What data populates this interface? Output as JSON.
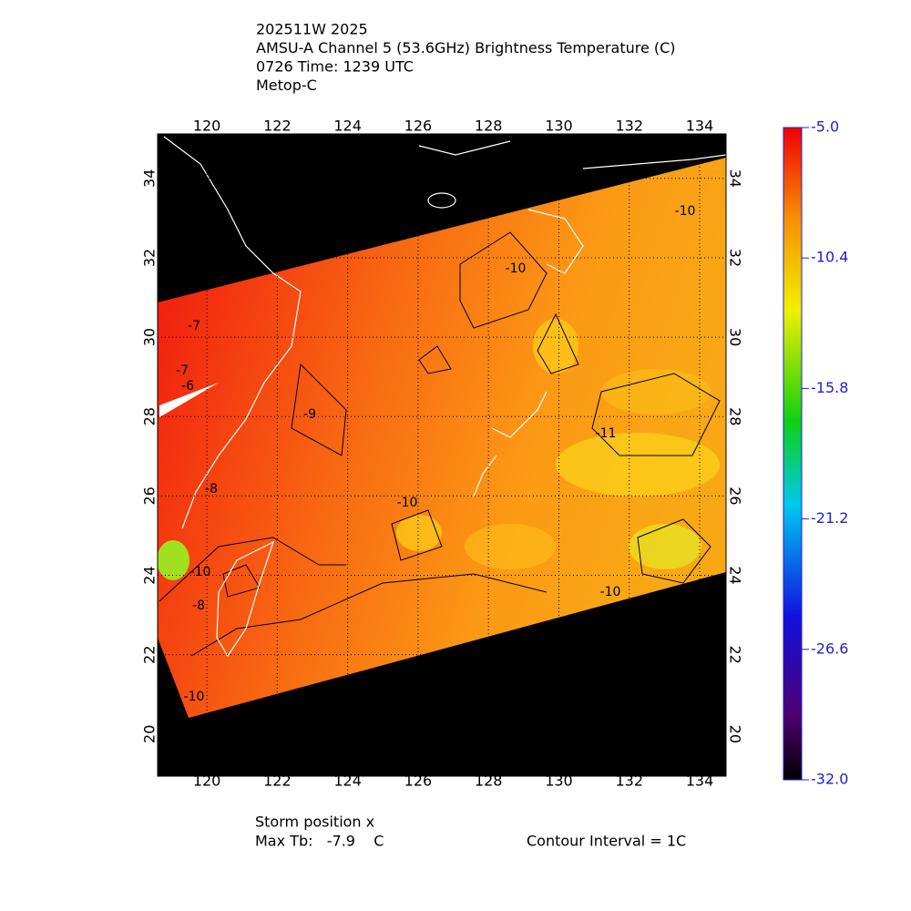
{
  "header": {
    "lines": [
      "202511W 2025",
      "AMSU-A Channel 5 (53.6GHz) Brightness Temperature (C)",
      "0726 Time: 1239 UTC",
      "Metop-C"
    ]
  },
  "map": {
    "lon_range": [
      118.6,
      134.75
    ],
    "lat_range": [
      18.94,
      35.12
    ],
    "lon_ticks": [
      120,
      122,
      124,
      126,
      128,
      130,
      132,
      134
    ],
    "lat_ticks": [
      20,
      22,
      24,
      26,
      28,
      30,
      32,
      34
    ],
    "contour_labels": [
      "-10",
      "-10",
      "-9",
      "-10",
      "-11",
      "-7",
      "-7",
      "-6",
      "-8",
      "-10",
      "-8",
      "-10",
      "-10"
    ]
  },
  "colorbar": {
    "range": [
      -32,
      -5
    ],
    "ticks": [
      {
        "value": -5,
        "label": "-5.0"
      },
      {
        "value": -10.4,
        "label": "-10.4"
      },
      {
        "value": -15.8,
        "label": "-15.8"
      },
      {
        "value": -21.2,
        "label": "-21.2"
      },
      {
        "value": -26.6,
        "label": "-26.6"
      },
      {
        "value": -32,
        "label": "-32.0"
      }
    ]
  },
  "footer": {
    "storm": "Storm position x",
    "max_tb": "Max Tb:   -7.9    C",
    "contour_interval": "Contour Interval = 1C"
  }
}
